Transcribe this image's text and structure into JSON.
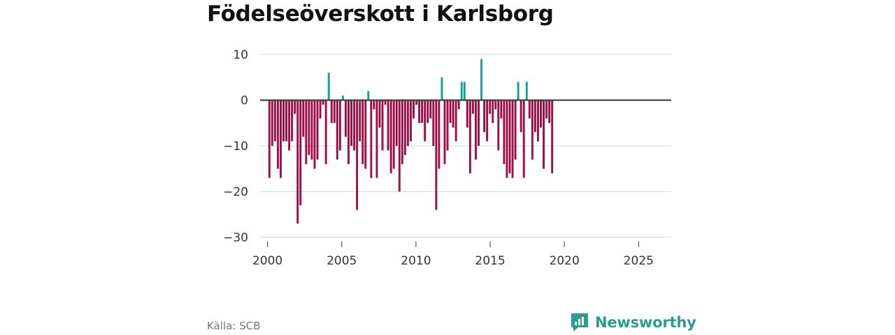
{
  "title": "Födelseöverskott i Karlsborg",
  "source": "Källa: SCB",
  "brand": {
    "name": "Newsworthy",
    "icon": "newsworthy-logo-icon"
  },
  "colors": {
    "positive": "#12a192",
    "negative": "#9c0e45",
    "zero_line": "#333333",
    "grid": "#dddddd"
  },
  "chart_data": {
    "type": "bar",
    "title": "Födelseöverskott i Karlsborg",
    "xlabel": "",
    "ylabel": "",
    "xlim": [
      1999.5,
      2027.2
    ],
    "ylim": [
      -30,
      10
    ],
    "yticks": [
      10,
      0,
      -10,
      -20,
      -30
    ],
    "ytick_labels": [
      "10",
      "0",
      "−10",
      "−20",
      "−30"
    ],
    "xticks": [
      2000,
      2005,
      2010,
      2015,
      2020,
      2025
    ],
    "xtick_labels": [
      "2000",
      "2005",
      "2010",
      "2015",
      "2020",
      "2025"
    ],
    "series_start": 2000.125,
    "step": 0.1905,
    "values": [
      -17,
      -10,
      -9,
      -15,
      -17,
      -9,
      -9,
      -11,
      -9,
      -3,
      -27,
      -23,
      -8,
      -14,
      -12,
      -13,
      -15,
      -13,
      -4,
      -1,
      -14,
      6,
      -5,
      -5,
      -13,
      -11,
      1,
      -8,
      -14,
      -10,
      -11,
      -24,
      -9,
      -14,
      -15,
      2,
      -17,
      -2,
      -17,
      -6,
      -11,
      -1,
      -11,
      -16,
      -15,
      -10,
      -20,
      -14,
      -12,
      -10,
      -9,
      -4,
      -1,
      -5,
      -5,
      -9,
      -5,
      -4,
      -10,
      -24,
      -15,
      5,
      -14,
      -11,
      -5,
      -6,
      -9,
      -2,
      4,
      4,
      -6,
      -16,
      -3,
      -13,
      -10,
      9,
      -7,
      -9,
      -3,
      -5,
      -2,
      -11,
      -4,
      -14,
      -17,
      -16,
      -17,
      -13,
      4,
      -7,
      -17,
      4,
      -4,
      -13,
      -7,
      -9,
      -6,
      -15,
      -4,
      -5,
      -16
    ]
  }
}
